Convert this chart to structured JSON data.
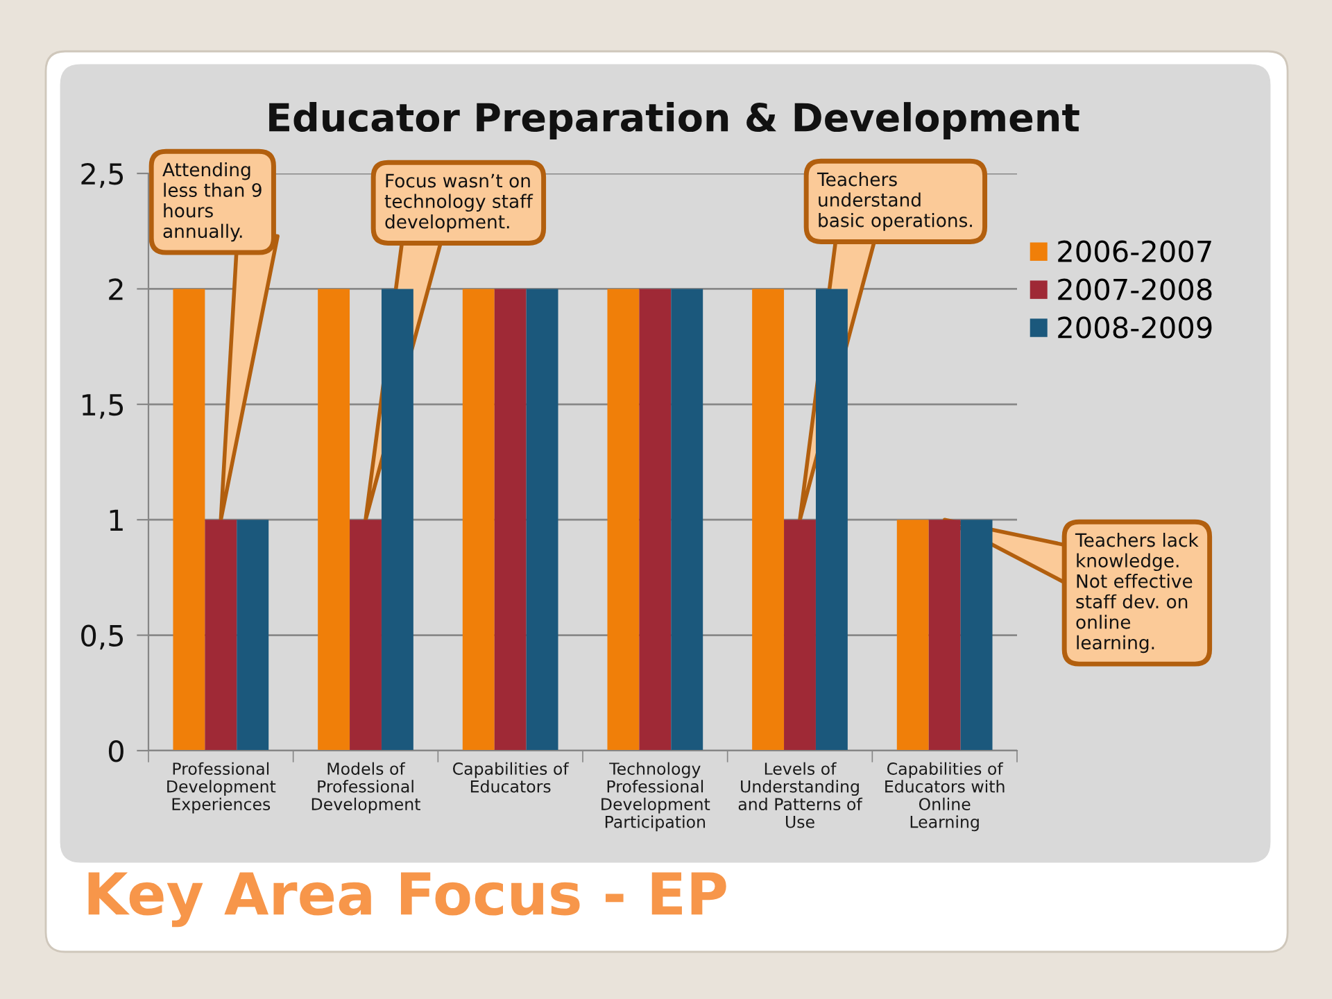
{
  "chart_data": {
    "type": "bar",
    "title": "Educator Preparation & Development",
    "subtitle": "Key Area Focus - EP",
    "categories": [
      "Professional\nDevelopment\nExperiences",
      "Models of\nProfessional\nDevelopment",
      "Capabilities of\nEducators",
      "Technology\nProfessional\nDevelopment\nParticipation",
      "Levels of\nUnderstanding\nand Patterns of\nUse",
      "Capabilities of\nEducators with\nOnline\nLearning"
    ],
    "series": [
      {
        "name": "2006-2007",
        "color": "#f07f09",
        "values": [
          2,
          2,
          2,
          2,
          2,
          1
        ]
      },
      {
        "name": "2007-2008",
        "color": "#9f2936",
        "values": [
          1,
          1,
          2,
          2,
          1,
          1
        ]
      },
      {
        "name": "2008-2009",
        "color": "#1b587c",
        "values": [
          1,
          2,
          2,
          2,
          2,
          1
        ]
      }
    ],
    "ylim": [
      0,
      2.5
    ],
    "yticks": [
      0,
      {
        "value": 0.5,
        "label": "0,5"
      },
      1,
      {
        "value": 1.5,
        "label": "1,5"
      },
      2,
      {
        "value": 2.5,
        "label": "2,5"
      }
    ],
    "grid": "y",
    "legend": "right",
    "annotations": [
      {
        "text": "Attending\nless than 9\nhours\nannually.",
        "x": "Professional\nDevelopment\nExperiences",
        "y": 1
      },
      {
        "text": "Focus wasn’t on\ntechnology staff\ndevelopment.",
        "x": "Models of\nProfessional\nDevelopment",
        "y": 1
      },
      {
        "text": "Teachers\nunderstand\nbasic operations.",
        "x": "Levels of\nUnderstanding\nand Patterns of\nUse",
        "y": 1
      },
      {
        "text": "Teachers lack\nknowledge.\nNot effective\nstaff dev. on\nonline\nlearning.",
        "x": "Capabilities of\nEducators with\nOnline\nLearning",
        "y": 1
      }
    ]
  }
}
